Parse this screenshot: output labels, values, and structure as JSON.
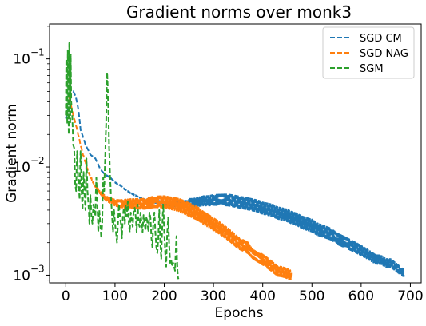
{
  "chart_data": {
    "type": "line",
    "title": "Gradient norms over monk3",
    "xlabel": "Epochs",
    "ylabel": "Gradient norm",
    "xlim": [
      -33,
      722
    ],
    "ylim": [
      0.00085,
      0.21
    ],
    "yscale": "log",
    "grid": false,
    "legend_position": "top-right",
    "x_ticks": [
      {
        "value": 0,
        "label": "0"
      },
      {
        "value": 100,
        "label": "100"
      },
      {
        "value": 200,
        "label": "200"
      },
      {
        "value": 300,
        "label": "300"
      },
      {
        "value": 400,
        "label": "400"
      },
      {
        "value": 500,
        "label": "500"
      },
      {
        "value": 600,
        "label": "600"
      },
      {
        "value": 700,
        "label": "700"
      }
    ],
    "y_ticks": [
      {
        "value": 0.001,
        "base": "10",
        "exp": "−3"
      },
      {
        "value": 0.01,
        "base": "10",
        "exp": "−2"
      },
      {
        "value": 0.1,
        "base": "10",
        "exp": "−1"
      }
    ],
    "series": [
      {
        "name": "SGD CM",
        "color": "#1f77b4",
        "points": [
          [
            0,
            0.028
          ],
          [
            5,
            0.035
          ],
          [
            10,
            0.048
          ],
          [
            15,
            0.05
          ],
          [
            20,
            0.045
          ],
          [
            25,
            0.035
          ],
          [
            30,
            0.022
          ],
          [
            40,
            0.016
          ],
          [
            50,
            0.013
          ],
          [
            60,
            0.012
          ],
          [
            70,
            0.0095
          ],
          [
            80,
            0.0085
          ],
          [
            90,
            0.008
          ],
          [
            100,
            0.0072
          ],
          [
            110,
            0.0068
          ],
          [
            120,
            0.0062
          ],
          [
            130,
            0.0058
          ],
          [
            140,
            0.0055
          ],
          [
            150,
            0.0052
          ],
          [
            160,
            0.005
          ],
          [
            170,
            0.0049
          ],
          [
            180,
            0.0048
          ],
          [
            190,
            0.0047
          ],
          [
            200,
            0.0046
          ],
          [
            210,
            0.0046
          ],
          [
            220,
            0.0046
          ],
          [
            230,
            0.0045
          ],
          [
            240,
            0.0046
          ],
          [
            250,
            0.0047
          ],
          [
            260,
            0.0047
          ],
          [
            270,
            0.0048
          ],
          [
            280,
            0.0049
          ],
          [
            290,
            0.0049
          ],
          [
            300,
            0.005
          ],
          [
            310,
            0.005
          ],
          [
            320,
            0.005
          ],
          [
            330,
            0.005
          ],
          [
            340,
            0.0049
          ],
          [
            350,
            0.0048
          ],
          [
            360,
            0.0047
          ],
          [
            370,
            0.0046
          ],
          [
            380,
            0.0045
          ],
          [
            390,
            0.0044
          ],
          [
            400,
            0.0042
          ],
          [
            410,
            0.0041
          ],
          [
            420,
            0.004
          ],
          [
            430,
            0.0038
          ],
          [
            440,
            0.0037
          ],
          [
            450,
            0.0036
          ],
          [
            460,
            0.0034
          ],
          [
            470,
            0.0033
          ],
          [
            480,
            0.0031
          ],
          [
            490,
            0.003
          ],
          [
            500,
            0.0029
          ],
          [
            510,
            0.0027
          ],
          [
            520,
            0.0026
          ],
          [
            530,
            0.0025
          ],
          [
            540,
            0.0024
          ],
          [
            550,
            0.0022
          ],
          [
            560,
            0.0021
          ],
          [
            570,
            0.002
          ],
          [
            580,
            0.0019
          ],
          [
            590,
            0.0018
          ],
          [
            600,
            0.0017
          ],
          [
            610,
            0.0016
          ],
          [
            620,
            0.0015
          ],
          [
            630,
            0.0014
          ],
          [
            640,
            0.0014
          ],
          [
            650,
            0.0013
          ],
          [
            660,
            0.0013
          ],
          [
            670,
            0.0012
          ],
          [
            680,
            0.0011
          ],
          [
            687,
            0.00105
          ]
        ],
        "osc": [
          [
            0,
            0
          ],
          [
            170,
            0.01
          ],
          [
            200,
            0.05
          ],
          [
            280,
            0.1
          ],
          [
            330,
            0.12
          ],
          [
            500,
            0.13
          ],
          [
            687,
            0.08
          ]
        ]
      },
      {
        "name": "SGD NAG",
        "color": "#ff7f0e",
        "points": [
          [
            0,
            0.05
          ],
          [
            5,
            0.048
          ],
          [
            10,
            0.038
          ],
          [
            15,
            0.03
          ],
          [
            20,
            0.025
          ],
          [
            25,
            0.02
          ],
          [
            30,
            0.016
          ],
          [
            35,
            0.013
          ],
          [
            40,
            0.011
          ],
          [
            45,
            0.0092
          ],
          [
            50,
            0.0082
          ],
          [
            55,
            0.0073
          ],
          [
            60,
            0.0066
          ],
          [
            65,
            0.0062
          ],
          [
            70,
            0.0058
          ],
          [
            80,
            0.0052
          ],
          [
            90,
            0.0049
          ],
          [
            100,
            0.0047
          ],
          [
            110,
            0.0046
          ],
          [
            120,
            0.0046
          ],
          [
            130,
            0.0046
          ],
          [
            140,
            0.0046
          ],
          [
            150,
            0.0046
          ],
          [
            160,
            0.0046
          ],
          [
            170,
            0.0047
          ],
          [
            180,
            0.0048
          ],
          [
            190,
            0.0048
          ],
          [
            200,
            0.0048
          ],
          [
            210,
            0.0047
          ],
          [
            220,
            0.0046
          ],
          [
            230,
            0.0045
          ],
          [
            240,
            0.0043
          ],
          [
            250,
            0.0041
          ],
          [
            260,
            0.0039
          ],
          [
            270,
            0.0037
          ],
          [
            280,
            0.0034
          ],
          [
            290,
            0.0032
          ],
          [
            300,
            0.003
          ],
          [
            310,
            0.0028
          ],
          [
            320,
            0.0026
          ],
          [
            330,
            0.0024
          ],
          [
            340,
            0.0022
          ],
          [
            350,
            0.002
          ],
          [
            360,
            0.0019
          ],
          [
            370,
            0.0018
          ],
          [
            380,
            0.0016
          ],
          [
            390,
            0.0015
          ],
          [
            400,
            0.0014
          ],
          [
            410,
            0.0013
          ],
          [
            420,
            0.0012
          ],
          [
            430,
            0.0011
          ],
          [
            440,
            0.00108
          ],
          [
            450,
            0.00104
          ],
          [
            458,
            0.001
          ]
        ],
        "osc": [
          [
            0,
            0
          ],
          [
            60,
            0.02
          ],
          [
            130,
            0.1
          ],
          [
            250,
            0.14
          ],
          [
            458,
            0.1
          ]
        ]
      },
      {
        "name": "SGM",
        "color": "#2ca02c",
        "points": [
          [
            0,
            0.03
          ],
          [
            1,
            0.1
          ],
          [
            2,
            0.06
          ],
          [
            3,
            0.025
          ],
          [
            4,
            0.12
          ],
          [
            5,
            0.04
          ],
          [
            6,
            0.02
          ],
          [
            7,
            0.14
          ],
          [
            8,
            0.05
          ],
          [
            9,
            0.025
          ],
          [
            10,
            0.11
          ],
          [
            11,
            0.04
          ],
          [
            13,
            0.03
          ],
          [
            15,
            0.016
          ],
          [
            17,
            0.015
          ],
          [
            19,
            0.007
          ],
          [
            21,
            0.006
          ],
          [
            23,
            0.014
          ],
          [
            25,
            0.008
          ],
          [
            28,
            0.005
          ],
          [
            30,
            0.014
          ],
          [
            32,
            0.006
          ],
          [
            34,
            0.004
          ],
          [
            36,
            0.009
          ],
          [
            38,
            0.0055
          ],
          [
            40,
            0.004
          ],
          [
            42,
            0.012
          ],
          [
            44,
            0.006
          ],
          [
            46,
            0.0045
          ],
          [
            48,
            0.003
          ],
          [
            50,
            0.0055
          ],
          [
            52,
            0.0035
          ],
          [
            54,
            0.003
          ],
          [
            56,
            0.0045
          ],
          [
            58,
            0.004
          ],
          [
            60,
            0.0035
          ],
          [
            62,
            0.008
          ],
          [
            64,
            0.0045
          ],
          [
            66,
            0.0025
          ],
          [
            68,
            0.004
          ],
          [
            70,
            0.003
          ],
          [
            72,
            0.0022
          ],
          [
            74,
            0.003
          ],
          [
            76,
            0.008
          ],
          [
            78,
            0.006
          ],
          [
            80,
            0.012
          ],
          [
            82,
            0.025
          ],
          [
            84,
            0.075
          ],
          [
            86,
            0.04
          ],
          [
            88,
            0.015
          ],
          [
            90,
            0.008
          ],
          [
            92,
            0.005
          ],
          [
            94,
            0.0035
          ],
          [
            96,
            0.0025
          ],
          [
            98,
            0.004
          ],
          [
            100,
            0.003
          ],
          [
            102,
            0.0025
          ],
          [
            104,
            0.002
          ],
          [
            106,
            0.003
          ],
          [
            108,
            0.0045
          ],
          [
            110,
            0.0035
          ],
          [
            112,
            0.003
          ],
          [
            114,
            0.0022
          ],
          [
            116,
            0.0035
          ],
          [
            118,
            0.0042
          ],
          [
            120,
            0.003
          ],
          [
            122,
            0.0045
          ],
          [
            124,
            0.0035
          ],
          [
            126,
            0.0048
          ],
          [
            128,
            0.003
          ],
          [
            130,
            0.0025
          ],
          [
            132,
            0.0038
          ],
          [
            134,
            0.0032
          ],
          [
            136,
            0.0028
          ],
          [
            138,
            0.004
          ],
          [
            140,
            0.0042
          ],
          [
            142,
            0.0035
          ],
          [
            144,
            0.0025
          ],
          [
            146,
            0.0045
          ],
          [
            148,
            0.003
          ],
          [
            150,
            0.0028
          ],
          [
            152,
            0.0038
          ],
          [
            154,
            0.003
          ],
          [
            156,
            0.0025
          ],
          [
            158,
            0.0036
          ],
          [
            160,
            0.003
          ],
          [
            162,
            0.0026
          ],
          [
            164,
            0.0035
          ],
          [
            166,
            0.003
          ],
          [
            168,
            0.0025
          ],
          [
            170,
            0.0038
          ],
          [
            172,
            0.0034
          ],
          [
            174,
            0.0022
          ],
          [
            176,
            0.0018
          ],
          [
            178,
            0.0032
          ],
          [
            180,
            0.0038
          ],
          [
            182,
            0.0025
          ],
          [
            184,
            0.0018
          ],
          [
            186,
            0.0016
          ],
          [
            188,
            0.0022
          ],
          [
            190,
            0.004
          ],
          [
            192,
            0.002
          ],
          [
            194,
            0.0014
          ],
          [
            196,
            0.0028
          ],
          [
            198,
            0.0045
          ],
          [
            200,
            0.0025
          ],
          [
            202,
            0.0016
          ],
          [
            204,
            0.0012
          ],
          [
            206,
            0.0024
          ],
          [
            208,
            0.0034
          ],
          [
            210,
            0.0019
          ],
          [
            212,
            0.0013
          ],
          [
            214,
            0.0014
          ],
          [
            216,
            0.0012
          ],
          [
            218,
            0.0013
          ],
          [
            220,
            0.0012
          ],
          [
            222,
            0.0011
          ],
          [
            224,
            0.0019
          ],
          [
            225,
            0.0023
          ],
          [
            226,
            0.0014
          ],
          [
            227,
            0.0011
          ],
          [
            228,
            0.00095
          ],
          [
            229,
            0.00092
          ]
        ],
        "osc": [
          [
            0,
            0
          ],
          [
            229,
            0
          ]
        ]
      }
    ]
  }
}
